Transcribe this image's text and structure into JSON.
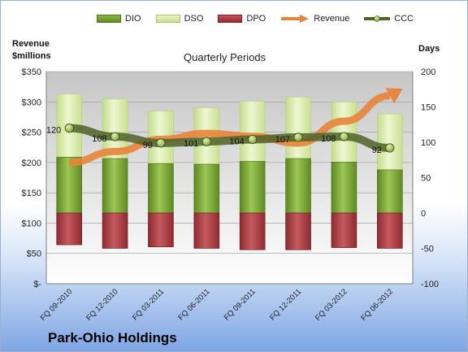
{
  "chart_data": {
    "type": "bar",
    "title": "Quarterly Periods",
    "company": "Park-Ohio Holdings",
    "left_axis_label_line1": "Revenue",
    "left_axis_label_line2": "$millions",
    "right_axis_label": "Days",
    "left_ticks": [
      "$-",
      "$50",
      "$100",
      "$150",
      "$200",
      "$250",
      "$300",
      "$350"
    ],
    "right_ticks": [
      "-100",
      "-50",
      "0",
      "50",
      "100",
      "150",
      "200"
    ],
    "categories": [
      "FQ 09-2010",
      "FQ 12-2010",
      "FQ 03-2011",
      "FQ 06-2011",
      "FQ 09-2011",
      "FQ 12-2011",
      "FQ 03-2012",
      "FQ 06-2012"
    ],
    "right_axis_range": [
      -100,
      200
    ],
    "left_axis_range": [
      0,
      350
    ],
    "legend_position": "top",
    "series": [
      {
        "name": "DIO",
        "axis": "right",
        "color": "#6f9a2c",
        "values": [
          79,
          77,
          70,
          69,
          73,
          77,
          72,
          61
        ]
      },
      {
        "name": "DSO",
        "axis": "right",
        "color": "#d6e9a6",
        "values": [
          89,
          84,
          74,
          80,
          85,
          87,
          85,
          79
        ]
      },
      {
        "name": "DPO",
        "axis": "right",
        "color": "#a83a40",
        "values": [
          -45,
          -50,
          -48,
          -50,
          -52,
          -52,
          -49,
          -50
        ]
      },
      {
        "name": "Revenue",
        "axis": "left",
        "color": "#e8843a",
        "values": [
          200,
          218,
          238,
          248,
          243,
          232,
          268,
          310
        ]
      },
      {
        "name": "CCC",
        "axis": "right",
        "color": "#4f6228",
        "values": [
          120,
          108,
          99,
          101,
          104,
          107,
          108,
          92
        ]
      }
    ]
  }
}
